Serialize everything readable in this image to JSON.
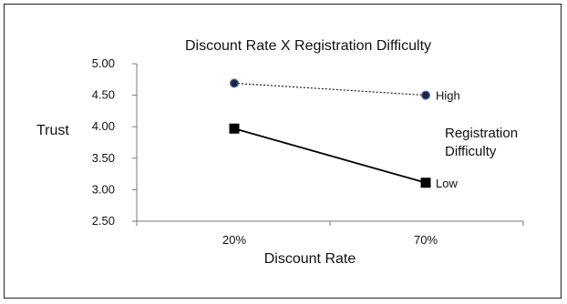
{
  "chart_data": {
    "type": "line",
    "title": "Discount Rate X Registration Difficulty",
    "xlabel": "Discount Rate",
    "ylabel": "Trust",
    "categories": [
      "20%",
      "70%"
    ],
    "ylim": [
      2.5,
      5.0
    ],
    "yticks": [
      "2.50",
      "3.00",
      "3.50",
      "4.00",
      "4.50",
      "5.00"
    ],
    "grid": false,
    "legend_title": "Registration Difficulty",
    "legend_placement": "right",
    "series": [
      {
        "name": "High",
        "values": [
          4.69,
          4.5
        ],
        "color": "#111111",
        "line_style": "dotted",
        "marker": "circle",
        "marker_fill": "#1a2440"
      },
      {
        "name": "Low",
        "values": [
          3.97,
          3.11
        ],
        "color": "#000000",
        "line_style": "solid",
        "marker": "square",
        "marker_fill": "#000000"
      }
    ]
  }
}
